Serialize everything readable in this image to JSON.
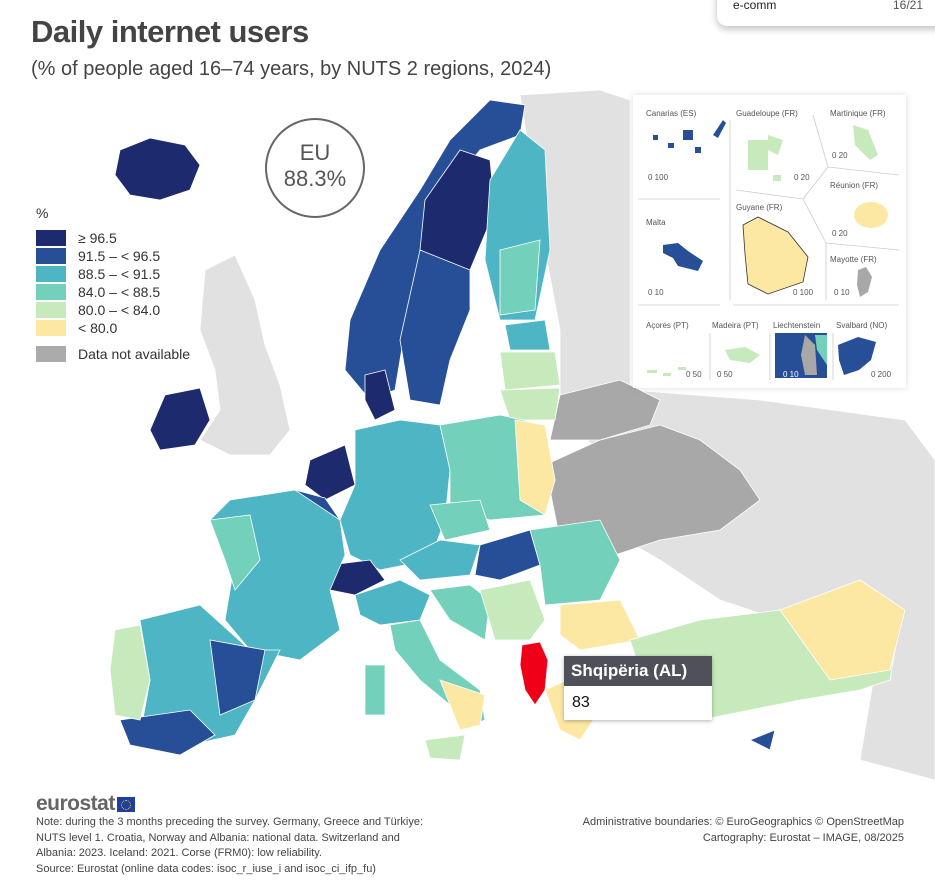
{
  "top_card": {
    "label": "e-comm",
    "value": "16/21"
  },
  "title": "Daily internet users",
  "subtitle": "(% of people aged 16–74 years, by NUTS 2 regions, 2024)",
  "eu_badge": {
    "label": "EU",
    "value": "88.3%"
  },
  "legend": {
    "unit": "%",
    "classes": [
      {
        "label": "≥ 96.5",
        "color": "#1e2a6e"
      },
      {
        "label": "91.5 – < 96.5",
        "color": "#264f98"
      },
      {
        "label": "88.5 – < 91.5",
        "color": "#4db5c4"
      },
      {
        "label": "84.0 – < 88.5",
        "color": "#72d0bb"
      },
      {
        "label": "80.0 – < 84.0",
        "color": "#c7eabc"
      },
      {
        "label": "< 80.0",
        "color": "#fde8a3"
      }
    ],
    "not_available": {
      "label": "Data not available",
      "color": "#ababab"
    },
    "non_covered_color": "#e1e1e1",
    "highlight_color": "#f00018"
  },
  "insets": {
    "canarias": {
      "label": "Canarias (ES)",
      "scale": "0   100"
    },
    "guadeloupe": {
      "label": "Guadeloupe (FR)",
      "scale": "0  20"
    },
    "martinique": {
      "label": "Martinique (FR)",
      "scale": "0  20"
    },
    "reunion": {
      "label": "Réunion (FR)",
      "scale": "0  20"
    },
    "malta": {
      "label": "Malta",
      "scale": "0  10"
    },
    "guyane": {
      "label": "Guyane (FR)",
      "scale": "0   100"
    },
    "mayotte": {
      "label": "Mayotte (FR)",
      "scale": "0 10"
    },
    "acores": {
      "label": "Açores (PT)",
      "scale": "0  50"
    },
    "madeira": {
      "label": "Madeira (PT)",
      "scale": "0     50"
    },
    "liechtenstein": {
      "label": "Liechtenstein",
      "scale": "0  10"
    },
    "svalbard": {
      "label": "Svalbard (NO)",
      "scale": "0    200"
    }
  },
  "tooltip": {
    "region": "Shqipëria (AL)",
    "value": "83"
  },
  "footer": {
    "logo": "eurostat",
    "note": [
      "Note: during the 3 months preceding the survey. Germany, Greece and Türkiye:",
      "NUTS level 1. Croatia, Norway and Albania: national data. Switzerland and",
      "Albania: 2023. Iceland: 2021. Corse (FRM0): low reliability.",
      "Source: Eurostat (online data codes: isoc_r_iuse_i and isoc_ci_ifp_fu)"
    ],
    "credits": [
      "Administrative boundaries: © EuroGeographics © OpenStreetMap",
      "Cartography: Eurostat – IMAGE, 08/2025"
    ]
  }
}
